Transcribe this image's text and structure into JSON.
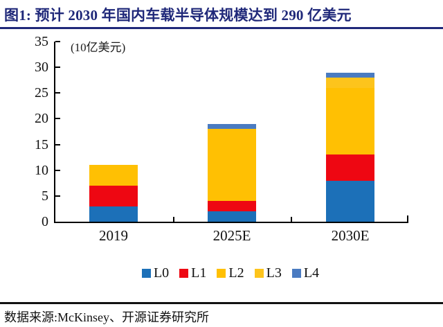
{
  "header": {
    "title": "图1: 预计 2030 年国内车载半导体规模达到 290 亿美元"
  },
  "chart_data": {
    "type": "bar",
    "stacked": true,
    "title": "预计 2030 年国内车载半导体规模达到 290 亿美元",
    "unit_label": "(10亿美元)",
    "xlabel": "",
    "ylabel": "10亿美元",
    "categories": [
      "2019",
      "2025E",
      "2030E"
    ],
    "series": [
      {
        "name": "L0",
        "color": "#1c70b8",
        "values": [
          3,
          2,
          8
        ]
      },
      {
        "name": "L1",
        "color": "#ee0712",
        "values": [
          4,
          2,
          5
        ]
      },
      {
        "name": "L2",
        "color": "#ffc003",
        "values": [
          4,
          14,
          13
        ]
      },
      {
        "name": "L3",
        "color": "#fdc41c",
        "values": [
          0,
          0,
          2
        ]
      },
      {
        "name": "L4",
        "color": "#4a7bc1",
        "values": [
          0,
          1,
          1
        ]
      }
    ],
    "totals": [
      11,
      19,
      29
    ],
    "ylim": [
      0,
      35
    ],
    "yticks": [
      0,
      5,
      10,
      15,
      20,
      25,
      30,
      35
    ],
    "grid": false,
    "legend_position": "bottom"
  },
  "footer": {
    "source": "数据来源:McKinsey、开源证券研究所"
  },
  "colors": {
    "title_navy": "#1f2879",
    "axis_black": "#000000"
  }
}
